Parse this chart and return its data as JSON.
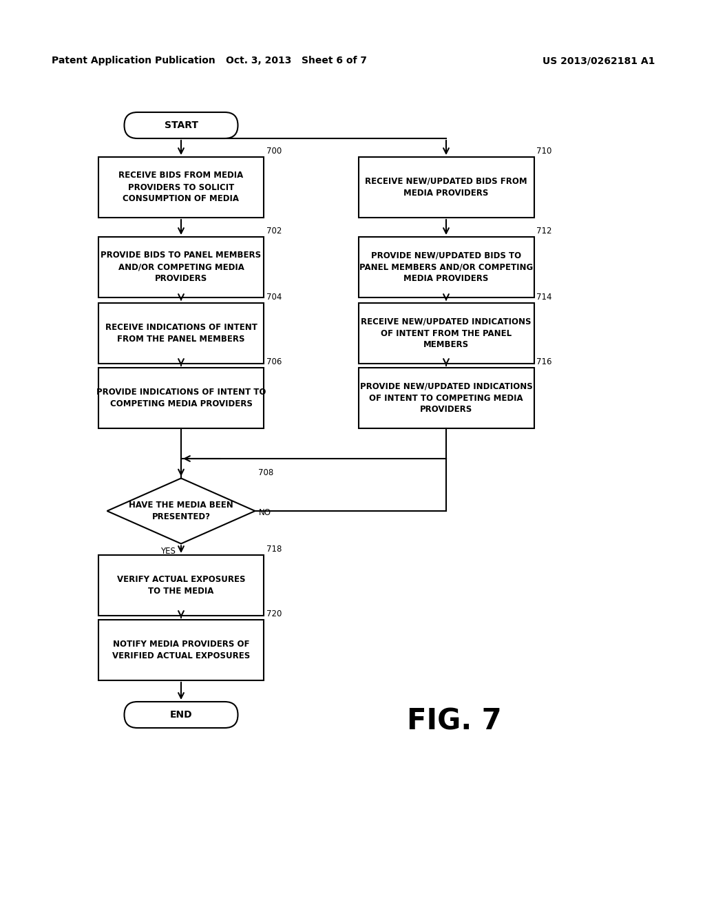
{
  "bg_color": "#ffffff",
  "header_left": "Patent Application Publication",
  "header_mid": "Oct. 3, 2013   Sheet 6 of 7",
  "header_right": "US 2013/0262181 A1",
  "fig_label": "FIG. 7",
  "start_label": "START",
  "end_label": "END",
  "box_left_0_id": "700",
  "box_left_0_label": "RECEIVE BIDS FROM MEDIA\nPROVIDERS TO SOLICIT\nCONSUMPTION OF MEDIA",
  "box_left_1_id": "702",
  "box_left_1_label": "PROVIDE BIDS TO PANEL MEMBERS\nAND/OR COMPETING MEDIA\nPROVIDERS",
  "box_left_2_id": "704",
  "box_left_2_label": "RECEIVE INDICATIONS OF INTENT\nFROM THE PANEL MEMBERS",
  "box_left_3_id": "706",
  "box_left_3_label": "PROVIDE INDICATIONS OF INTENT TO\nCOMPETING MEDIA PROVIDERS",
  "box_right_0_id": "710",
  "box_right_0_label": "RECEIVE NEW/UPDATED BIDS FROM\nMEDIA PROVIDERS",
  "box_right_1_id": "712",
  "box_right_1_label": "PROVIDE NEW/UPDATED BIDS TO\nPANEL MEMBERS AND/OR COMPETING\nMEDIA PROVIDERS",
  "box_right_2_id": "714",
  "box_right_2_label": "RECEIVE NEW/UPDATED INDICATIONS\nOF INTENT FROM THE PANEL\nMEMBERS",
  "box_right_3_id": "716",
  "box_right_3_label": "PROVIDE NEW/UPDATED INDICATIONS\nOF INTENT TO COMPETING MEDIA\nPROVIDERS",
  "diamond_id": "708",
  "diamond_label": "HAVE THE MEDIA BEEN\nPRESENTED?",
  "diamond_no": "NO",
  "diamond_yes": "YES",
  "box_bot_0_id": "718",
  "box_bot_0_label": "VERIFY ACTUAL EXPOSURES\nTO THE MEDIA",
  "box_bot_1_id": "720",
  "box_bot_1_label": "NOTIFY MEDIA PROVIDERS OF\nVERIFIED ACTUAL EXPOSURES"
}
